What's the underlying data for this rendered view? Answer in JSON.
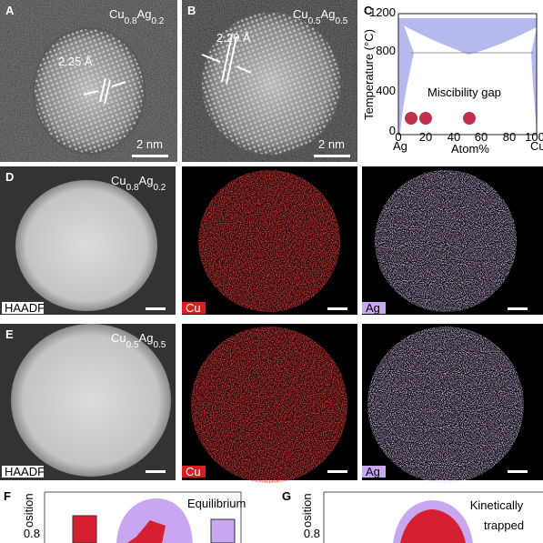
{
  "panels": {
    "A": {
      "label": "A",
      "formula": {
        "el1": "Cu",
        "n1": "0.8",
        "el2": "Ag",
        "n2": "0.2"
      },
      "spacing": "2.25 Å",
      "scale": "2 nm"
    },
    "B": {
      "label": "B",
      "formula": {
        "el1": "Cu",
        "n1": "0.5",
        "el2": "Ag",
        "n2": "0.5"
      },
      "spacing": "2.29 Å",
      "scale": "2 nm"
    },
    "C": {
      "label": "C",
      "y_label": "Temperature (°C)",
      "y_ticks": [
        "0",
        "400",
        "800",
        "1200"
      ],
      "x_ticks": [
        "0",
        "20",
        "40",
        "60",
        "80",
        "100"
      ],
      "x_left": "Ag",
      "x_label": "Atom%",
      "x_right": "Cu",
      "annotation": "Miscibility gap"
    },
    "D": {
      "label": "D",
      "formula": {
        "el1": "Cu",
        "n1": "0.8",
        "el2": "Ag",
        "n2": "0.2"
      },
      "haadf": "HAADF",
      "cu": "Cu",
      "ag": "Ag"
    },
    "E": {
      "label": "E",
      "formula": {
        "el1": "Cu",
        "n1": "0.5",
        "el2": "Ag",
        "n2": "0.5"
      },
      "haadf": "HAADF",
      "cu": "Cu",
      "ag": "Ag"
    },
    "F": {
      "label": "F",
      "y_label": "osition",
      "y_tick": "0.8",
      "annotation": "Equilibrium"
    },
    "G": {
      "label": "G",
      "y_label": "osition",
      "y_tick": "0.8",
      "annotation_1": "Kinetically",
      "annotation_2": "trapped"
    }
  }
}
